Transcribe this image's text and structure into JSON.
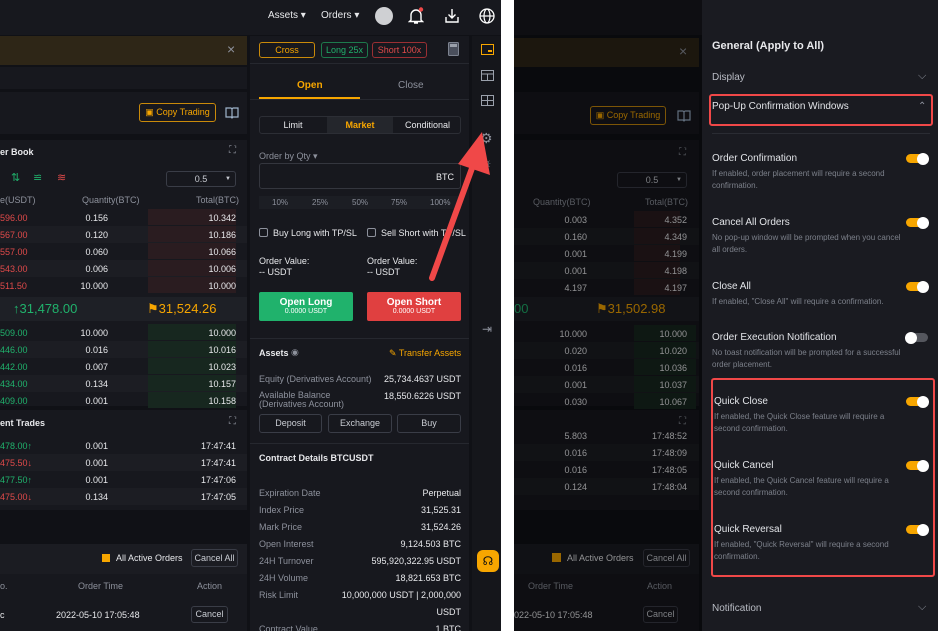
{
  "header": {
    "assets": "Assets",
    "orders": "Orders"
  },
  "copy_trading": "Copy Trading",
  "orderbook": {
    "title": "er Book",
    "step": "0.5",
    "col_price": "e(USDT)",
    "col_qty": "Quantity(BTC)",
    "col_total": "Total(BTC)",
    "asks": [
      {
        "p": "596.00",
        "q": "0.156",
        "t": "10.342"
      },
      {
        "p": "567.00",
        "q": "0.120",
        "t": "10.186"
      },
      {
        "p": "557.00",
        "q": "0.060",
        "t": "10.066"
      },
      {
        "p": "543.00",
        "q": "0.006",
        "t": "10.006"
      },
      {
        "p": "511.50",
        "q": "10.000",
        "t": "10.000"
      }
    ],
    "last_price": "↑31,478.00",
    "mark_price": "31,524.26",
    "bids": [
      {
        "p": "509.00",
        "q": "10.000",
        "t": "10.000"
      },
      {
        "p": "446.00",
        "q": "0.016",
        "t": "10.016"
      },
      {
        "p": "442.00",
        "q": "0.007",
        "t": "10.023"
      },
      {
        "p": "434.00",
        "q": "0.134",
        "t": "10.157"
      },
      {
        "p": "409.00",
        "q": "0.001",
        "t": "10.158"
      }
    ]
  },
  "trades": {
    "title": "ent Trades",
    "rows": [
      {
        "p": "478.00↑",
        "q": "0.001",
        "t": "17:47:41",
        "dir": "up"
      },
      {
        "p": "475.50↓",
        "q": "0.001",
        "t": "17:47:41",
        "dir": "down"
      },
      {
        "p": "477.50↑",
        "q": "0.001",
        "t": "17:47:06",
        "dir": "up"
      },
      {
        "p": "475.00↓",
        "q": "0.134",
        "t": "17:47:05",
        "dir": "down"
      }
    ]
  },
  "orders": {
    "all_active": "All Active Orders",
    "cancel_all": "Cancel All",
    "col_no": "o.",
    "col_time": "Order Time",
    "col_action": "Action",
    "row": {
      "no": "c",
      "time": "2022-05-10 17:05:48",
      "action": "Cancel"
    }
  },
  "trade": {
    "margin_mode": "Cross",
    "long_lev": "Long 25x",
    "short_lev": "Short 100x",
    "tab_open": "Open",
    "tab_close": "Close",
    "types": [
      "Limit",
      "Market",
      "Conditional"
    ],
    "qty_label": "Order by Qty",
    "qty_unit": "BTC",
    "pcts": [
      "10%",
      "25%",
      "50%",
      "75%",
      "100%"
    ],
    "tpsl_long": "Buy Long with TP/SL",
    "tpsl_short": "Sell Short with TP/SL",
    "ov_label": "Order Value:",
    "ov_value": "-- USDT",
    "open_long": "Open Long",
    "open_short": "Open Short",
    "btn_sub": "0.0000 USDT"
  },
  "assets": {
    "title": "Assets",
    "transfer": "Transfer Assets",
    "equity_label": "Equity (Derivatives Account)",
    "equity": "25,734.4637 USDT",
    "avail_label": "Available Balance (Derivatives Account)",
    "avail": "18,550.6226 USDT",
    "deposit": "Deposit",
    "exchange": "Exchange",
    "buy": "Buy"
  },
  "contract": {
    "title": "Contract Details BTCUSDT",
    "rows": [
      {
        "k": "Expiration Date",
        "v": "Perpetual"
      },
      {
        "k": "Index Price",
        "v": "31,525.31"
      },
      {
        "k": "Mark Price",
        "v": "31,524.26"
      },
      {
        "k": "Open Interest",
        "v": "9,124.503 BTC"
      },
      {
        "k": "24H Turnover",
        "v": "595,920,322.95 USDT"
      },
      {
        "k": "24H Volume",
        "v": "18,821.653 BTC"
      },
      {
        "k": "Risk Limit",
        "v": "10,000,000 USDT | 2,000,000"
      },
      {
        "k": "",
        "v": "USDT"
      },
      {
        "k": "Contract Value",
        "v": "1 BTC"
      }
    ]
  },
  "right": {
    "orderbook": {
      "step": "0.5",
      "col_qty": "Quantity(BTC)",
      "col_total": "Total(BTC)",
      "asks": [
        {
          "q": "0.003",
          "t": "4.352"
        },
        {
          "q": "0.160",
          "t": "4.349"
        },
        {
          "q": "0.001",
          "t": "4.199"
        },
        {
          "q": "0.001",
          "t": "4.198"
        },
        {
          "q": "4.197",
          "t": "4.197"
        }
      ],
      "last_price": "00",
      "mark_price": "31,502.98",
      "bids": [
        {
          "q": "10.000",
          "t": "10.000"
        },
        {
          "q": "0.020",
          "t": "10.020"
        },
        {
          "q": "0.016",
          "t": "10.036"
        },
        {
          "q": "0.001",
          "t": "10.037"
        },
        {
          "q": "0.030",
          "t": "10.067"
        }
      ]
    },
    "trades": [
      {
        "q": "5.803",
        "t": "17:48:52"
      },
      {
        "q": "0.016",
        "t": "17:48:09"
      },
      {
        "q": "0.016",
        "t": "17:48:05"
      },
      {
        "q": "0.124",
        "t": "17:48:04"
      }
    ],
    "orders": {
      "all_active": "All Active Orders",
      "cancel_all": "Cancel All",
      "col_time": "Order Time",
      "col_action": "Action",
      "time": "022-05-10 17:05:48",
      "action": "Cancel"
    }
  },
  "settings": {
    "title": "General (Apply to All)",
    "display": "Display",
    "popup": "Pop-Up Confirmation Windows",
    "notification": "Notification",
    "items": [
      {
        "title": "Order Confirmation",
        "desc": "If enabled, order placement will require a second confirmation.",
        "on": true
      },
      {
        "title": "Cancel All Orders",
        "desc": "No pop-up window will be prompted when you cancel all orders.",
        "on": true
      },
      {
        "title": "Close All",
        "desc": "If enabled, \"Close All\" will require a confirmation.",
        "on": true
      },
      {
        "title": "Order Execution Notification",
        "desc": "No toast notification will be prompted for a successful order placement.",
        "on": false
      },
      {
        "title": "Quick Close",
        "desc": "If enabled, the Quick Close feature will require a second confirmation.",
        "on": true
      },
      {
        "title": "Quick Cancel",
        "desc": "If enabled, the Quick Cancel feature will require a second confirmation.",
        "on": true
      },
      {
        "title": "Quick Reversal",
        "desc": "If enabled, \"Quick Reversal\" will require a second confirmation.",
        "on": true
      }
    ]
  },
  "colors": {
    "accent": "#f7a600",
    "buy": "#20b26c",
    "sell": "#e04a4a",
    "highlight": "#f04848"
  }
}
